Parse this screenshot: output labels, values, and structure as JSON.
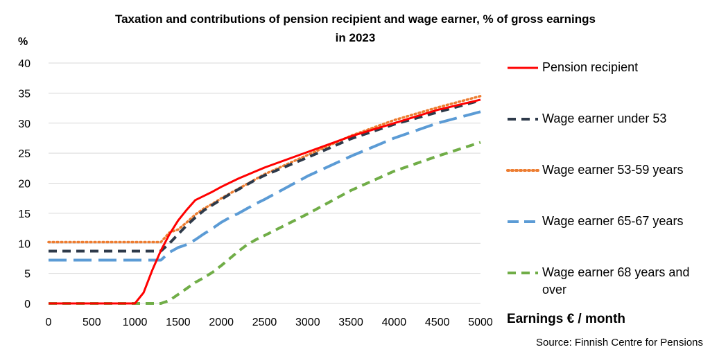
{
  "title_line1": "Taxation and contributions of pension recipient and wage earner, % of gross earnings",
  "title_line2": "in 2023",
  "source": "Source: Finnish Centre for Pensions",
  "chart_data": {
    "type": "line",
    "title": "Taxation and contributions of pension recipient and wage earner, % of gross earnings in 2023",
    "xlabel": "Earnings € / month",
    "ylabel": "%",
    "xlim": [
      0,
      5000
    ],
    "ylim": [
      0,
      40
    ],
    "x_ticks": [
      "0",
      "500",
      "1000",
      "1500",
      "2000",
      "2500",
      "3000",
      "3500",
      "4000",
      "4500",
      "5000"
    ],
    "y_ticks": [
      "0",
      "5",
      "10",
      "15",
      "20",
      "25",
      "30",
      "35",
      "40"
    ],
    "grid": "horizontal",
    "legend_position": "right",
    "x": [
      0,
      500,
      1000,
      1100,
      1200,
      1300,
      1400,
      1500,
      1600,
      1700,
      1800,
      1900,
      2000,
      2100,
      2200,
      2300,
      2400,
      2500,
      3000,
      3500,
      4000,
      4500,
      5000
    ],
    "series": [
      {
        "name": "Pension recipient",
        "color": "#ff0000",
        "style": "solid",
        "values": [
          0,
          0,
          0,
          1.8,
          5.5,
          8.8,
          11.5,
          13.8,
          15.6,
          17.2,
          17.9,
          18.6,
          19.4,
          20.1,
          20.8,
          21.4,
          22.0,
          22.6,
          25.2,
          27.8,
          30.0,
          32.2,
          33.9
        ]
      },
      {
        "name": "Wage earner under 53",
        "color": "#2e3a4a",
        "style": "dashed",
        "values": [
          8.7,
          8.7,
          8.7,
          8.7,
          8.7,
          8.7,
          10.0,
          11.5,
          13.0,
          14.3,
          15.5,
          16.4,
          17.3,
          18.2,
          19.0,
          19.8,
          20.6,
          21.3,
          24.3,
          27.4,
          29.8,
          31.8,
          33.8
        ]
      },
      {
        "name": "Wage earner 53-59 years",
        "color": "#ed7d31",
        "style": "dotted",
        "values": [
          10.2,
          10.2,
          10.2,
          10.2,
          10.2,
          10.2,
          11.8,
          12.3,
          13.5,
          14.8,
          15.8,
          16.6,
          17.5,
          18.3,
          19.1,
          19.9,
          20.7,
          21.5,
          24.7,
          27.9,
          30.5,
          32.6,
          34.5
        ]
      },
      {
        "name": "Wage earner 65-67 years",
        "color": "#5b9bd5",
        "style": "long-dash",
        "values": [
          7.2,
          7.2,
          7.2,
          7.2,
          7.2,
          7.2,
          8.5,
          9.3,
          9.8,
          10.6,
          11.6,
          12.5,
          13.5,
          14.3,
          15.0,
          15.8,
          16.6,
          17.3,
          21.2,
          24.5,
          27.5,
          30.0,
          31.9
        ]
      },
      {
        "name": "Wage earner 68 years and over",
        "color": "#70ad47",
        "style": "dashed",
        "values": [
          0,
          0,
          0,
          0,
          0,
          0,
          0.5,
          1.5,
          2.5,
          3.5,
          4.3,
          5.2,
          6.3,
          7.5,
          8.7,
          9.8,
          10.6,
          11.3,
          14.9,
          18.8,
          22.0,
          24.5,
          26.8
        ]
      }
    ]
  }
}
